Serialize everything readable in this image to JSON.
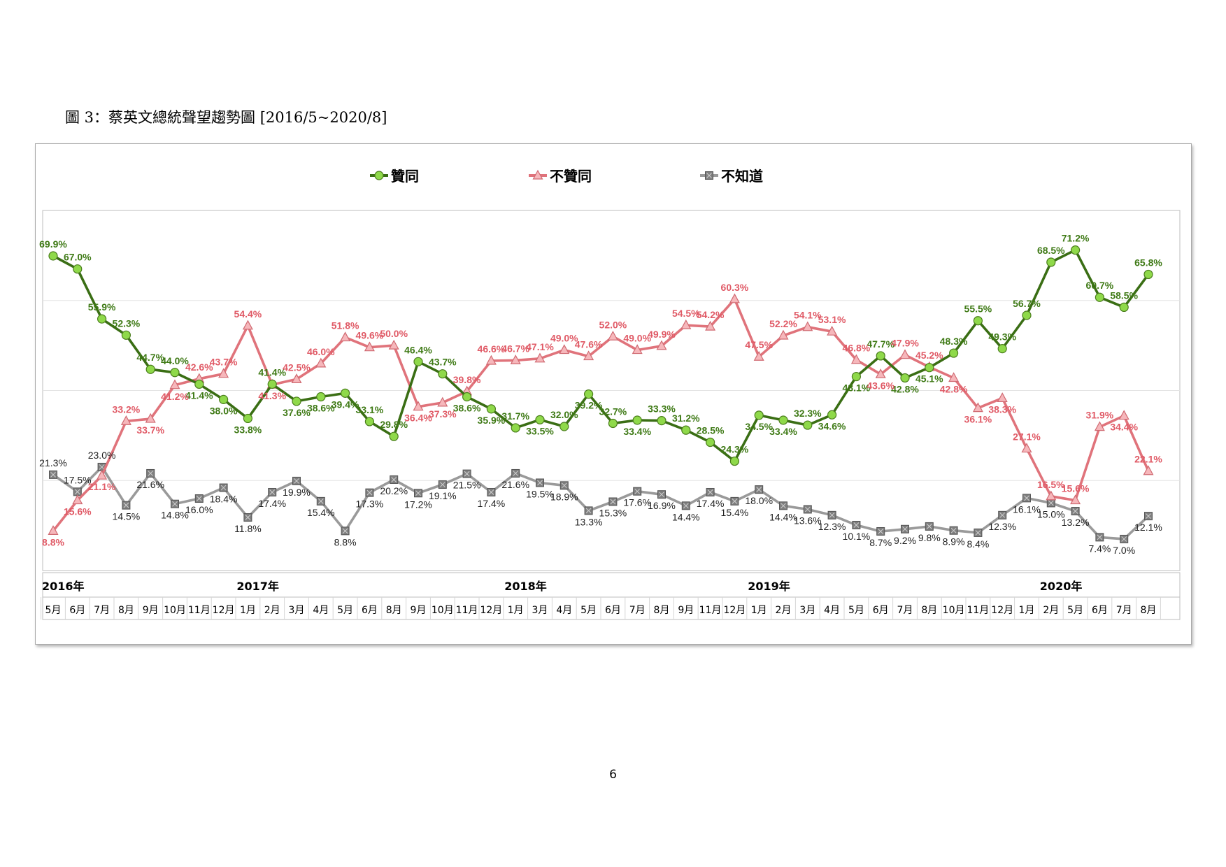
{
  "page": {
    "title": "圖 3：蔡英文總統聲望趨勢圖  [2016/5~2020/8]",
    "page_number": "6"
  },
  "chart_data": {
    "type": "line",
    "title": "",
    "xlabel": "",
    "ylabel": "",
    "ylim": [
      0,
      80
    ],
    "grid": "horizontal",
    "legend_position": "top",
    "year_labels": [
      {
        "label": "2016年",
        "index": 0
      },
      {
        "label": "2017年",
        "index": 8
      },
      {
        "label": "2018年",
        "index": 19
      },
      {
        "label": "2019年",
        "index": 29
      },
      {
        "label": "2020年",
        "index": 41
      }
    ],
    "categories": [
      "5月",
      "6月",
      "7月",
      "8月",
      "9月",
      "10月",
      "11月",
      "12月",
      "1月",
      "2月",
      "3月",
      "4月",
      "5月",
      "6月",
      "8月",
      "9月",
      "10月",
      "11月",
      "12月",
      "1月",
      "3月",
      "4月",
      "5月",
      "6月",
      "7月",
      "8月",
      "9月",
      "11月",
      "12月",
      "1月",
      "2月",
      "3月",
      "4月",
      "5月",
      "6月",
      "7月",
      "8月",
      "10月",
      "11月",
      "12月",
      "1月",
      "2月",
      "5月",
      "6月",
      "7月",
      "8月"
    ],
    "series": [
      {
        "name": "贊同",
        "color": "#3a6e14",
        "marker": "circle",
        "marker_color": "#8fd94a",
        "values": [
          69.9,
          67.0,
          55.9,
          52.3,
          44.7,
          44.0,
          41.4,
          38.0,
          33.8,
          41.4,
          37.6,
          38.6,
          39.4,
          33.1,
          29.8,
          46.4,
          43.7,
          38.6,
          35.9,
          31.7,
          33.5,
          32.0,
          39.2,
          32.7,
          33.4,
          33.3,
          31.2,
          28.5,
          24.3,
          34.5,
          33.4,
          32.3,
          34.6,
          43.1,
          47.7,
          42.8,
          45.1,
          48.3,
          55.5,
          49.3,
          56.7,
          68.5,
          71.2,
          60.7,
          58.5,
          65.8
        ]
      },
      {
        "name": "不贊同",
        "color": "#e0737b",
        "marker": "triangle",
        "marker_color": "#f6b7bb",
        "values": [
          8.8,
          15.6,
          21.1,
          33.2,
          33.7,
          41.2,
          42.6,
          43.7,
          54.4,
          41.3,
          42.5,
          46.0,
          51.8,
          49.6,
          50.0,
          36.4,
          37.3,
          39.8,
          46.6,
          46.7,
          47.1,
          49.0,
          47.6,
          52.0,
          49.0,
          49.9,
          54.5,
          54.2,
          60.3,
          47.5,
          52.2,
          54.1,
          53.1,
          46.8,
          43.6,
          47.9,
          45.2,
          42.8,
          36.1,
          38.3,
          27.1,
          16.5,
          15.6,
          31.9,
          34.4,
          22.1
        ]
      },
      {
        "name": "不知道",
        "color": "#9a9a9a",
        "marker": "square",
        "marker_color": "#7f7f7f",
        "values": [
          21.3,
          17.5,
          23.0,
          14.5,
          21.6,
          14.8,
          16.0,
          18.4,
          11.8,
          17.4,
          19.9,
          15.4,
          8.8,
          17.3,
          20.2,
          17.2,
          19.1,
          21.5,
          17.4,
          21.6,
          19.5,
          18.9,
          13.3,
          15.3,
          17.6,
          16.9,
          14.4,
          17.4,
          15.4,
          18.0,
          14.4,
          13.6,
          12.3,
          10.1,
          8.7,
          9.2,
          9.8,
          8.9,
          8.4,
          12.3,
          16.1,
          15.0,
          13.2,
          7.4,
          7.0,
          12.1
        ]
      }
    ]
  }
}
